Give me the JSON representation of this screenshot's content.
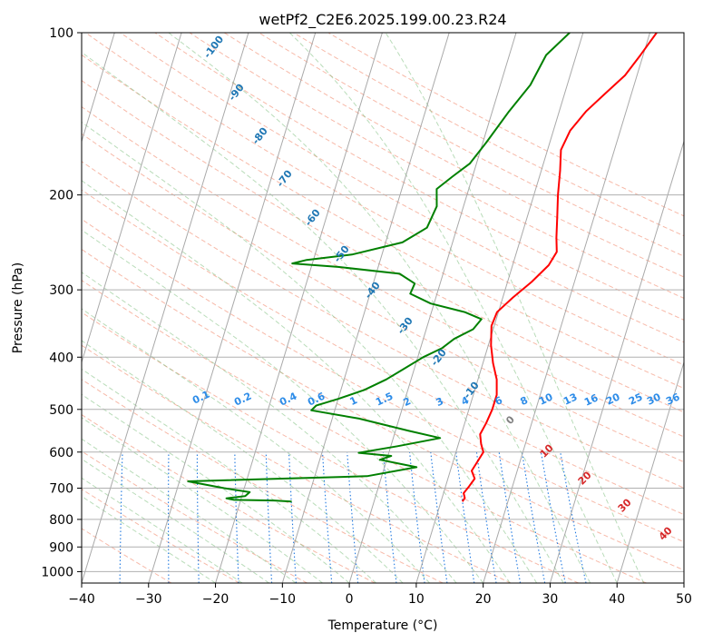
{
  "chart_data": {
    "type": "line",
    "subtype": "skew-t log-p diagram",
    "title": "wetPf2_C2E6.2025.199.00.23.R24",
    "xlabel": "Temperature (°C)",
    "ylabel": "Pressure (hPa)",
    "xlim": [
      -40,
      50
    ],
    "ylim": [
      1050,
      100
    ],
    "y_scale": "log",
    "x_ticks": [
      -40,
      -30,
      -20,
      -10,
      0,
      10,
      20,
      30,
      40,
      50
    ],
    "x_tick_labels": [
      "−40",
      "−30",
      "−20",
      "−10",
      "0",
      "10",
      "20",
      "30",
      "40",
      "50"
    ],
    "y_ticks": [
      100,
      200,
      300,
      400,
      500,
      600,
      700,
      800,
      900,
      1000
    ],
    "y_tick_labels": [
      "100",
      "200",
      "300",
      "400",
      "500",
      "600",
      "700",
      "800",
      "900",
      "1000"
    ],
    "grid": true,
    "colors": {
      "temperature": "#ff0000",
      "dewpoint": "#008000",
      "isotherm": "#a0a0a0",
      "dry_adiabat": "#f08060",
      "moist_adiabat": "#80c080",
      "mixing_ratio": "#1f78e0",
      "isotherm_label": "#1f77b4",
      "wetbulb_label": "#d62728"
    },
    "series": [
      {
        "role": "temperature",
        "points": [
          {
            "p": 741,
            "t": 13.2
          },
          {
            "p": 730,
            "t": 13.4
          },
          {
            "p": 715,
            "t": 13.0
          },
          {
            "p": 695,
            "t": 13.5
          },
          {
            "p": 672,
            "t": 14.0
          },
          {
            "p": 650,
            "t": 13.2
          },
          {
            "p": 628,
            "t": 13.6
          },
          {
            "p": 600,
            "t": 14.1
          },
          {
            "p": 580,
            "t": 13.4
          },
          {
            "p": 556,
            "t": 12.8
          },
          {
            "p": 530,
            "t": 13.2
          },
          {
            "p": 500,
            "t": 13.5
          },
          {
            "p": 470,
            "t": 13.5
          },
          {
            "p": 440,
            "t": 12.8
          },
          {
            "p": 410,
            "t": 11.5
          },
          {
            "p": 380,
            "t": 10.4
          },
          {
            "p": 350,
            "t": 9.6
          },
          {
            "p": 330,
            "t": 9.8
          },
          {
            "p": 310,
            "t": 11.5
          },
          {
            "p": 290,
            "t": 13.6
          },
          {
            "p": 270,
            "t": 15.4
          },
          {
            "p": 255,
            "t": 16.0
          },
          {
            "p": 240,
            "t": 15.3
          },
          {
            "p": 220,
            "t": 14.5
          },
          {
            "p": 200,
            "t": 13.6
          },
          {
            "p": 180,
            "t": 12.8
          },
          {
            "p": 165,
            "t": 12.0
          },
          {
            "p": 152,
            "t": 12.5
          },
          {
            "p": 140,
            "t": 14.0
          },
          {
            "p": 130,
            "t": 16.0
          },
          {
            "p": 120,
            "t": 18.2
          },
          {
            "p": 110,
            "t": 19.6
          },
          {
            "p": 100,
            "t": 21.0
          }
        ]
      },
      {
        "role": "dewpoint",
        "points": [
          {
            "p": 741,
            "t": -12.3
          },
          {
            "p": 738,
            "t": -15.0
          },
          {
            "p": 736,
            "t": -21.0
          },
          {
            "p": 731,
            "t": -22.2
          },
          {
            "p": 724,
            "t": -19.5
          },
          {
            "p": 712,
            "t": -19.0
          },
          {
            "p": 700,
            "t": -23.0
          },
          {
            "p": 680,
            "t": -28.7
          },
          {
            "p": 665,
            "t": -2.2
          },
          {
            "p": 640,
            "t": 4.8
          },
          {
            "p": 620,
            "t": -1.0
          },
          {
            "p": 610,
            "t": 0.5
          },
          {
            "p": 602,
            "t": -4.5
          },
          {
            "p": 585,
            "t": 1.0
          },
          {
            "p": 565,
            "t": 7.0
          },
          {
            "p": 548,
            "t": 2.0
          },
          {
            "p": 520,
            "t": -6.0
          },
          {
            "p": 502,
            "t": -13.5
          },
          {
            "p": 492,
            "t": -13.0
          },
          {
            "p": 478,
            "t": -10.0
          },
          {
            "p": 460,
            "t": -6.5
          },
          {
            "p": 440,
            "t": -3.7
          },
          {
            "p": 420,
            "t": -1.5
          },
          {
            "p": 400,
            "t": 0.8
          },
          {
            "p": 385,
            "t": 3.2
          },
          {
            "p": 370,
            "t": 4.6
          },
          {
            "p": 355,
            "t": 7.0
          },
          {
            "p": 340,
            "t": 7.8
          },
          {
            "p": 330,
            "t": 5.0
          },
          {
            "p": 318,
            "t": -0.5
          },
          {
            "p": 305,
            "t": -4.0
          },
          {
            "p": 292,
            "t": -3.8
          },
          {
            "p": 280,
            "t": -6.5
          },
          {
            "p": 272,
            "t": -16.0
          },
          {
            "p": 268,
            "t": -23.0
          },
          {
            "p": 264,
            "t": -21.0
          },
          {
            "p": 258,
            "t": -14.5
          },
          {
            "p": 245,
            "t": -7.5
          },
          {
            "p": 230,
            "t": -4.5
          },
          {
            "p": 210,
            "t": -4.0
          },
          {
            "p": 195,
            "t": -4.8
          },
          {
            "p": 185,
            "t": -3.0
          },
          {
            "p": 175,
            "t": -1.0
          },
          {
            "p": 160,
            "t": 0.5
          },
          {
            "p": 140,
            "t": 2.5
          },
          {
            "p": 125,
            "t": 4.5
          },
          {
            "p": 110,
            "t": 5.5
          },
          {
            "p": 100,
            "t": 8.0
          }
        ]
      }
    ],
    "isotherm_labels": [
      "-100",
      "-90",
      "-80",
      "-70",
      "-60",
      "-50",
      "-40",
      "-30",
      "-20",
      "-10"
    ],
    "mixing_ratio_labels": [
      "0.1",
      "0.2",
      "0.4",
      "0.6",
      "1",
      "1.5",
      "2",
      "3",
      "4",
      "6",
      "8",
      "10",
      "13",
      "16",
      "20",
      "25",
      "30",
      "36"
    ],
    "wetbulb_labels": [
      "0",
      "10",
      "20",
      "30",
      "40"
    ]
  }
}
